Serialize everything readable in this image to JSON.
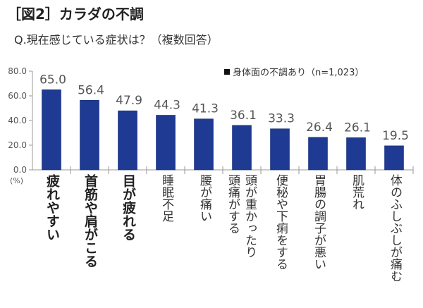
{
  "header": {
    "title": "［図2］カラダの不調",
    "subtitle": "Q.現在感じている症状は？（複数回答）"
  },
  "chart_data": {
    "type": "bar",
    "title": "［図2］カラダの不調",
    "subtitle": "Q.現在感じている症状は？（複数回答）",
    "xlabel": "",
    "ylabel": "(%)",
    "ylim": [
      0,
      80
    ],
    "yticks": [
      "0.0",
      "20.0",
      "40.0",
      "60.0",
      "80.0"
    ],
    "ytick_values": [
      0,
      20,
      40,
      60,
      80
    ],
    "grid": false,
    "legend": {
      "position": "top-right",
      "label": "身体面の不調あり（n=1,023）"
    },
    "bar_color": "#1F3A93",
    "categories": [
      "疲れやすい",
      "首筋や肩がこる",
      "目が疲れる",
      "睡眠不足",
      "腰が痛い",
      "頭が重かったり頭痛がする",
      "便秘や下痢をする",
      "胃腸の調子が悪い",
      "肌荒れ",
      "体のふしぶしが痛む"
    ],
    "category_lines": [
      [
        "疲れやすい"
      ],
      [
        "首筋や肩がこる"
      ],
      [
        "目が疲れる"
      ],
      [
        "睡眠不足"
      ],
      [
        "腰が痛い"
      ],
      [
        "頭が重かったり",
        "頭痛がする"
      ],
      [
        "便秘や下痢をする"
      ],
      [
        "胃腸の調子が悪い"
      ],
      [
        "肌荒れ"
      ],
      [
        "体のふしぶしが痛む"
      ]
    ],
    "emphasized": [
      true,
      true,
      true,
      false,
      false,
      false,
      false,
      false,
      false,
      false
    ],
    "values": [
      65.0,
      56.4,
      47.9,
      44.3,
      41.3,
      36.1,
      33.3,
      26.4,
      26.1,
      19.5
    ],
    "value_labels": [
      "65.0",
      "56.4",
      "47.9",
      "44.3",
      "41.3",
      "36.1",
      "33.3",
      "26.4",
      "26.1",
      "19.5"
    ]
  }
}
